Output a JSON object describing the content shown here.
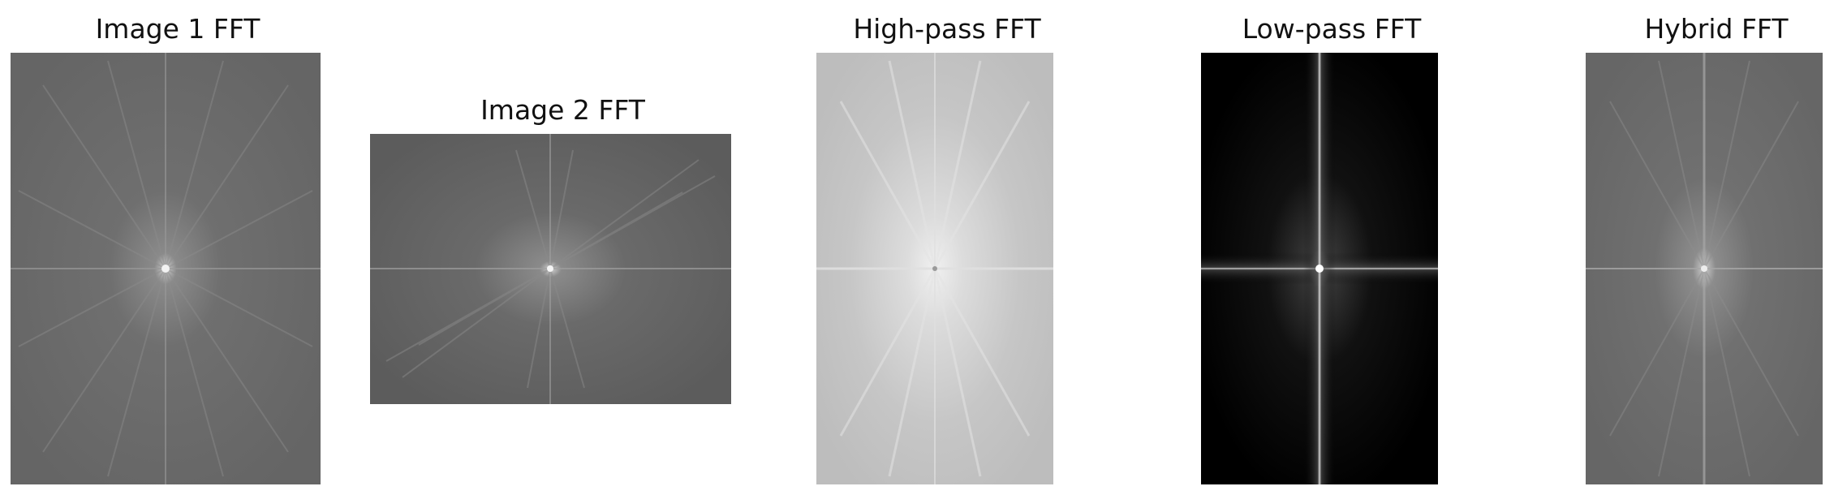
{
  "panels": [
    {
      "title": "Image 1 FFT",
      "tone": "#6e6e6e",
      "center": "#f2f2f2",
      "axis": "#9a9a9a",
      "rays": "#8d8d8d"
    },
    {
      "title": "Image 2 FFT",
      "tone": "#666666",
      "center": "#f5f5f5",
      "axis": "#a0a0a0",
      "rays": "#8a8a8a"
    },
    {
      "title": "High-pass FFT",
      "tone": "#c3c3c3",
      "center": "#f0f0f0",
      "axis": "#e0e0e0",
      "rays": "#dedede"
    },
    {
      "title": "Low-pass FFT",
      "tone": "#000000",
      "center": "#ffffff",
      "axis": "#bdbdbd",
      "rays": "#333333"
    },
    {
      "title": "Hybrid FFT",
      "tone": "#696969",
      "center": "#ededed",
      "axis": "#a8a8a8",
      "rays": "#8e8e8e"
    }
  ]
}
